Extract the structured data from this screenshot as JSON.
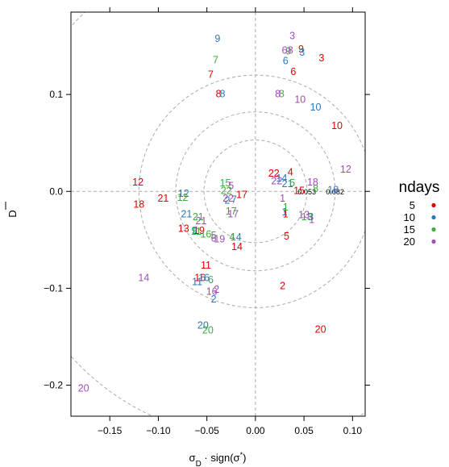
{
  "chart_data": {
    "type": "scatter",
    "marker": "text",
    "xlabel": "σD · sign(σ*)",
    "ylabel": "D",
    "xlim": [
      -0.19,
      0.113
    ],
    "ylim": [
      -0.232,
      0.185
    ],
    "x_ticks": [
      {
        "value": -0.15,
        "label": "−0.15"
      },
      {
        "value": -0.1,
        "label": "−0.10"
      },
      {
        "value": -0.05,
        "label": "−0.05"
      },
      {
        "value": 0.0,
        "label": "0.00"
      },
      {
        "value": 0.05,
        "label": "0.05"
      },
      {
        "value": 0.1,
        "label": "0.10"
      }
    ],
    "y_ticks": [
      {
        "value": -0.2,
        "label": "−0.2"
      },
      {
        "value": -0.1,
        "label": "−0.1"
      },
      {
        "value": 0.0,
        "label": "0.0"
      },
      {
        "value": 0.1,
        "label": "0.1"
      }
    ],
    "reference_lines": {
      "x": 0,
      "y": 0
    },
    "contours": [
      {
        "radius": 0.053,
        "label": "0.053"
      },
      {
        "radius": 0.082,
        "label": "0.082"
      },
      {
        "radius": 0.12,
        "label": ""
      },
      {
        "radius": 0.255,
        "label": ""
      }
    ],
    "contour_label_y": -0.0005,
    "legend": {
      "title": "ndays",
      "position": "right",
      "entries": [
        {
          "label": "5",
          "color": "#DF0000"
        },
        {
          "label": "10",
          "color": "#2E76BA"
        },
        {
          "label": "15",
          "color": "#3DAA3D"
        },
        {
          "label": "20",
          "color": "#9E4FB5"
        }
      ]
    },
    "series": [
      {
        "name": "5",
        "color": "#DF0000",
        "points": [
          {
            "x": 0.068,
            "y": 0.138,
            "label": "3"
          },
          {
            "x": 0.047,
            "y": 0.147,
            "label": "9"
          },
          {
            "x": 0.039,
            "y": 0.124,
            "label": "6"
          },
          {
            "x": -0.046,
            "y": 0.121,
            "label": "7"
          },
          {
            "x": -0.038,
            "y": 0.101,
            "label": "8"
          },
          {
            "x": 0.084,
            "y": 0.068,
            "label": "10"
          },
          {
            "x": 0.019,
            "y": 0.019,
            "label": "22"
          },
          {
            "x": 0.036,
            "y": 0.02,
            "label": "4"
          },
          {
            "x": 0.045,
            "y": 0.001,
            "label": "15"
          },
          {
            "x": -0.014,
            "y": -0.003,
            "label": "17"
          },
          {
            "x": -0.095,
            "y": -0.007,
            "label": "21"
          },
          {
            "x": -0.121,
            "y": 0.01,
            "label": "12"
          },
          {
            "x": -0.12,
            "y": -0.013,
            "label": "18"
          },
          {
            "x": 0.031,
            "y": -0.023,
            "label": "1"
          },
          {
            "x": 0.032,
            "y": -0.046,
            "label": "5"
          },
          {
            "x": -0.074,
            "y": -0.038,
            "label": "13"
          },
          {
            "x": -0.058,
            "y": -0.04,
            "label": "19"
          },
          {
            "x": -0.019,
            "y": -0.057,
            "label": "14"
          },
          {
            "x": -0.051,
            "y": -0.076,
            "label": "11"
          },
          {
            "x": -0.057,
            "y": -0.089,
            "label": "16"
          },
          {
            "x": 0.028,
            "y": -0.097,
            "label": "2"
          },
          {
            "x": 0.067,
            "y": -0.142,
            "label": "20"
          }
        ]
      },
      {
        "name": "10",
        "color": "#2E76BA",
        "points": [
          {
            "x": -0.039,
            "y": 0.158,
            "label": "9"
          },
          {
            "x": 0.048,
            "y": 0.144,
            "label": "3"
          },
          {
            "x": 0.031,
            "y": 0.135,
            "label": "6"
          },
          {
            "x": -0.034,
            "y": 0.101,
            "label": "8"
          },
          {
            "x": 0.062,
            "y": 0.087,
            "label": "10"
          },
          {
            "x": 0.08,
            "y": 0.002,
            "label": "18"
          },
          {
            "x": 0.033,
            "y": 0.008,
            "label": "21"
          },
          {
            "x": 0.027,
            "y": 0.014,
            "label": "14"
          },
          {
            "x": -0.022,
            "y": -0.008,
            "label": "7"
          },
          {
            "x": -0.029,
            "y": -0.009,
            "label": "2"
          },
          {
            "x": -0.074,
            "y": -0.002,
            "label": "12"
          },
          {
            "x": -0.071,
            "y": -0.023,
            "label": "21"
          },
          {
            "x": 0.03,
            "y": -0.021,
            "label": "1"
          },
          {
            "x": 0.057,
            "y": -0.026,
            "label": "3"
          },
          {
            "x": -0.063,
            "y": -0.04,
            "label": "9"
          },
          {
            "x": -0.02,
            "y": -0.047,
            "label": "14"
          },
          {
            "x": -0.06,
            "y": -0.093,
            "label": "11"
          },
          {
            "x": -0.053,
            "y": -0.089,
            "label": "16"
          },
          {
            "x": -0.043,
            "y": -0.111,
            "label": "2"
          },
          {
            "x": -0.054,
            "y": -0.138,
            "label": "20"
          }
        ]
      },
      {
        "name": "15",
        "color": "#3DAA3D",
        "points": [
          {
            "x": -0.041,
            "y": 0.136,
            "label": "7"
          },
          {
            "x": 0.034,
            "y": 0.145,
            "label": "9"
          },
          {
            "x": 0.027,
            "y": 0.101,
            "label": "8"
          },
          {
            "x": 0.062,
            "y": 0.003,
            "label": "8"
          },
          {
            "x": 0.038,
            "y": 0.009,
            "label": "5"
          },
          {
            "x": -0.031,
            "y": 0.009,
            "label": "15"
          },
          {
            "x": -0.03,
            "y": 0.001,
            "label": "22"
          },
          {
            "x": -0.075,
            "y": -0.006,
            "label": "12"
          },
          {
            "x": 0.031,
            "y": -0.016,
            "label": "1"
          },
          {
            "x": -0.025,
            "y": -0.02,
            "label": "17"
          },
          {
            "x": -0.059,
            "y": -0.026,
            "label": "21"
          },
          {
            "x": -0.061,
            "y": -0.041,
            "label": "11"
          },
          {
            "x": 0.053,
            "y": -0.026,
            "label": "13"
          },
          {
            "x": -0.051,
            "y": -0.044,
            "label": "16"
          },
          {
            "x": -0.043,
            "y": -0.045,
            "label": "5"
          },
          {
            "x": -0.024,
            "y": -0.047,
            "label": "4"
          },
          {
            "x": -0.046,
            "y": -0.091,
            "label": "6"
          },
          {
            "x": -0.049,
            "y": -0.143,
            "label": "20"
          }
        ]
      },
      {
        "name": "20",
        "color": "#9E4FB5",
        "points": [
          {
            "x": 0.038,
            "y": 0.161,
            "label": "3"
          },
          {
            "x": 0.03,
            "y": 0.146,
            "label": "6"
          },
          {
            "x": 0.036,
            "y": 0.146,
            "label": "8"
          },
          {
            "x": 0.023,
            "y": 0.101,
            "label": "8"
          },
          {
            "x": 0.046,
            "y": 0.095,
            "label": "10"
          },
          {
            "x": 0.093,
            "y": 0.023,
            "label": "12"
          },
          {
            "x": 0.059,
            "y": 0.01,
            "label": "18"
          },
          {
            "x": 0.022,
            "y": 0.011,
            "label": "22"
          },
          {
            "x": -0.025,
            "y": 0.006,
            "label": "5"
          },
          {
            "x": -0.028,
            "y": -0.007,
            "label": "22"
          },
          {
            "x": -0.056,
            "y": -0.03,
            "label": "21"
          },
          {
            "x": -0.023,
            "y": -0.023,
            "label": "17"
          },
          {
            "x": 0.028,
            "y": -0.007,
            "label": "1"
          },
          {
            "x": 0.058,
            "y": -0.029,
            "label": "1"
          },
          {
            "x": 0.05,
            "y": -0.024,
            "label": "13"
          },
          {
            "x": -0.043,
            "y": -0.048,
            "label": "6"
          },
          {
            "x": -0.037,
            "y": -0.049,
            "label": "19"
          },
          {
            "x": -0.045,
            "y": -0.103,
            "label": "16"
          },
          {
            "x": -0.04,
            "y": -0.101,
            "label": "2"
          },
          {
            "x": -0.115,
            "y": -0.089,
            "label": "14"
          },
          {
            "x": -0.177,
            "y": -0.203,
            "label": "20"
          }
        ]
      }
    ]
  }
}
